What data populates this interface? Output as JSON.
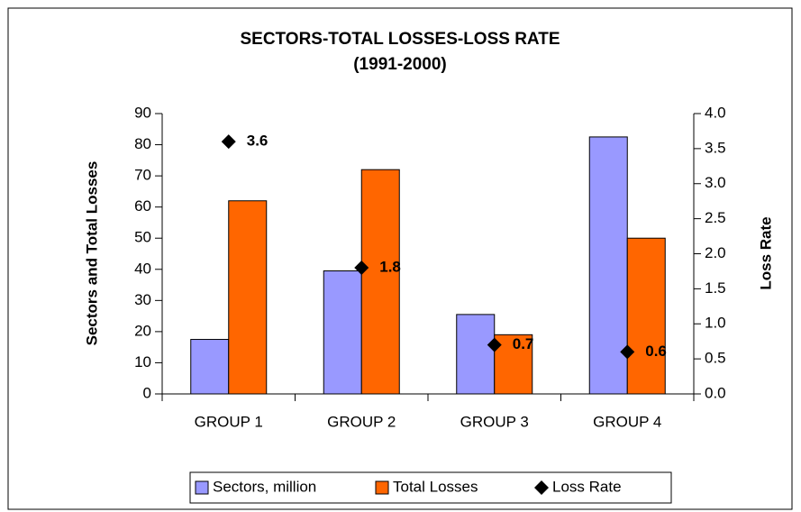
{
  "chart_data": {
    "type": "bar",
    "title": "SECTORS-TOTAL LOSSES-LOSS RATE",
    "subtitle": "(1991-2000)",
    "y_label": "Sectors and Total Losses",
    "y2_label": "Loss Rate",
    "categories": [
      "GROUP 1",
      "GROUP 2",
      "GROUP 3",
      "GROUP 4"
    ],
    "series": [
      {
        "name": "Sectors, million",
        "color": "#9999ff",
        "values": [
          17.5,
          39.5,
          25.5,
          82.5
        ]
      },
      {
        "name": "Total Losses",
        "color": "#ff6600",
        "values": [
          62,
          72,
          19,
          50
        ]
      },
      {
        "name": "Loss Rate",
        "color": "#000000",
        "type": "scatter",
        "axis": "y2",
        "values": [
          3.6,
          1.8,
          0.7,
          0.6
        ]
      }
    ],
    "ylim": [
      0,
      90
    ],
    "yticks": [
      0,
      10,
      20,
      30,
      40,
      50,
      60,
      70,
      80,
      90
    ],
    "y2lim": [
      0,
      4
    ],
    "y2ticks": [
      {
        "value": 0,
        "label": "0.0"
      },
      0.5,
      {
        "value": 1,
        "label": "1.0"
      },
      1.5,
      {
        "value": 2,
        "label": "2.0"
      },
      2.5,
      {
        "value": 3,
        "label": "3.0"
      },
      3.5,
      {
        "value": 4,
        "label": "4.0"
      }
    ],
    "legend": "bottom"
  }
}
